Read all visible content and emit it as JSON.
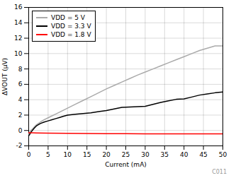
{
  "chart_data": {
    "type": "line",
    "xlabel": "Current (mA)",
    "ylabel": "ΔVOUT (μV)",
    "xlim": [
      0,
      50
    ],
    "ylim": [
      -2,
      16
    ],
    "xticks": [
      0,
      5,
      10,
      15,
      20,
      25,
      30,
      35,
      40,
      45,
      50
    ],
    "yticks": [
      -2,
      0,
      2,
      4,
      6,
      8,
      10,
      12,
      14,
      16
    ],
    "grid": true,
    "legend": "upper left",
    "annotations": [
      "C011"
    ],
    "series": [
      {
        "name": "VDD = 5 V",
        "color": "#aaaaaa",
        "x": [
          0,
          0.5,
          1,
          1.5,
          2,
          3,
          4,
          5,
          6,
          7,
          8,
          9,
          10,
          12,
          14,
          16,
          18,
          20,
          22,
          24,
          26,
          28,
          30,
          32,
          34,
          36,
          38,
          40,
          42,
          44,
          46,
          48,
          50
        ],
        "values": [
          -0.5,
          0.0,
          0.2,
          0.5,
          0.75,
          1.1,
          1.4,
          1.65,
          1.9,
          2.15,
          2.4,
          2.65,
          2.9,
          3.4,
          3.9,
          4.4,
          4.9,
          5.4,
          5.85,
          6.3,
          6.75,
          7.2,
          7.6,
          8.0,
          8.4,
          8.8,
          9.2,
          9.6,
          10.0,
          10.4,
          10.7,
          11.0,
          11.0
        ]
      },
      {
        "name": "VDD = 3.3 V",
        "color": "#000000",
        "x": [
          0,
          0.5,
          1,
          1.5,
          2,
          3,
          4,
          5,
          6,
          7,
          8,
          9,
          10,
          12,
          14,
          16,
          18,
          20,
          22,
          24,
          26,
          28,
          30,
          32,
          34,
          36,
          38,
          40,
          42,
          44,
          46,
          48,
          50
        ],
        "values": [
          -0.7,
          -0.3,
          0.05,
          0.35,
          0.6,
          0.9,
          1.1,
          1.25,
          1.4,
          1.55,
          1.7,
          1.85,
          2.0,
          2.1,
          2.2,
          2.3,
          2.45,
          2.6,
          2.8,
          3.0,
          3.05,
          3.1,
          3.15,
          3.4,
          3.65,
          3.85,
          4.05,
          4.1,
          4.35,
          4.6,
          4.75,
          4.9,
          5.0
        ]
      },
      {
        "name": "VDD = 1.8 V",
        "color": "#ff0000",
        "x": [
          0,
          1,
          2,
          5,
          10,
          15,
          20,
          25,
          30,
          35,
          40,
          45,
          50
        ],
        "values": [
          -0.3,
          -0.3,
          -0.32,
          -0.35,
          -0.38,
          -0.4,
          -0.42,
          -0.42,
          -0.43,
          -0.43,
          -0.44,
          -0.44,
          -0.44
        ]
      }
    ]
  }
}
